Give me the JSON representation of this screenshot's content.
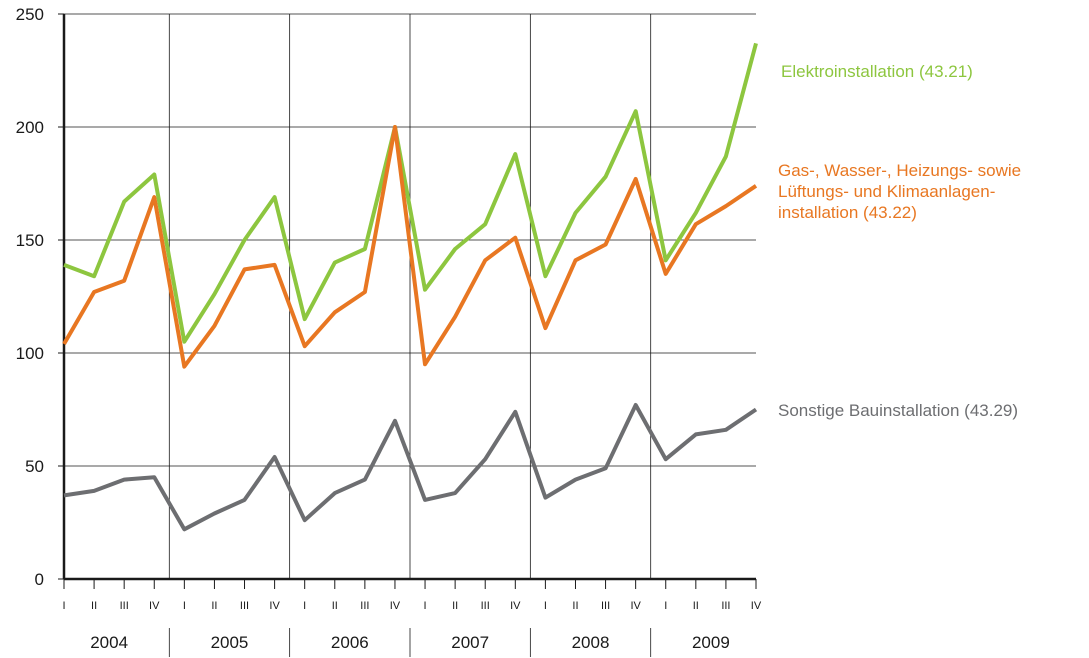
{
  "chart_data": {
    "type": "line",
    "yticks": [
      "0",
      "50",
      "100",
      "150",
      "200",
      "250"
    ],
    "ylim": [
      0,
      250
    ],
    "quarters": [
      "I",
      "II",
      "III",
      "IV"
    ],
    "years": [
      "2004",
      "2005",
      "2006",
      "2007",
      "2008",
      "2009"
    ],
    "grid": "horizontal and year separators",
    "series": [
      {
        "name": "Elektroinstallation (43.21)",
        "color": "#8dc63f",
        "values": [
          139,
          134,
          167,
          179,
          105,
          126,
          150,
          169,
          115,
          140,
          146,
          200,
          128,
          146,
          157,
          188,
          134,
          162,
          178,
          207,
          141,
          162,
          187,
          237
        ]
      },
      {
        "name_lines": [
          "Gas-, Wasser-, Heizungs- sowie",
          "Lüftungs- und Klimaanlagen-",
          "installation (43.22)"
        ],
        "color": "#e87722",
        "values": [
          104,
          127,
          132,
          169,
          94,
          112,
          137,
          139,
          103,
          118,
          127,
          200,
          95,
          116,
          141,
          151,
          111,
          141,
          148,
          177,
          135,
          157,
          165,
          174
        ]
      },
      {
        "name": "Sonstige Bauinstallation (43.29)",
        "color": "#6d6e71",
        "values": [
          37,
          39,
          44,
          45,
          22,
          29,
          35,
          54,
          26,
          38,
          44,
          70,
          35,
          38,
          53,
          74,
          36,
          44,
          49,
          77,
          53,
          64,
          66,
          75
        ]
      }
    ]
  }
}
